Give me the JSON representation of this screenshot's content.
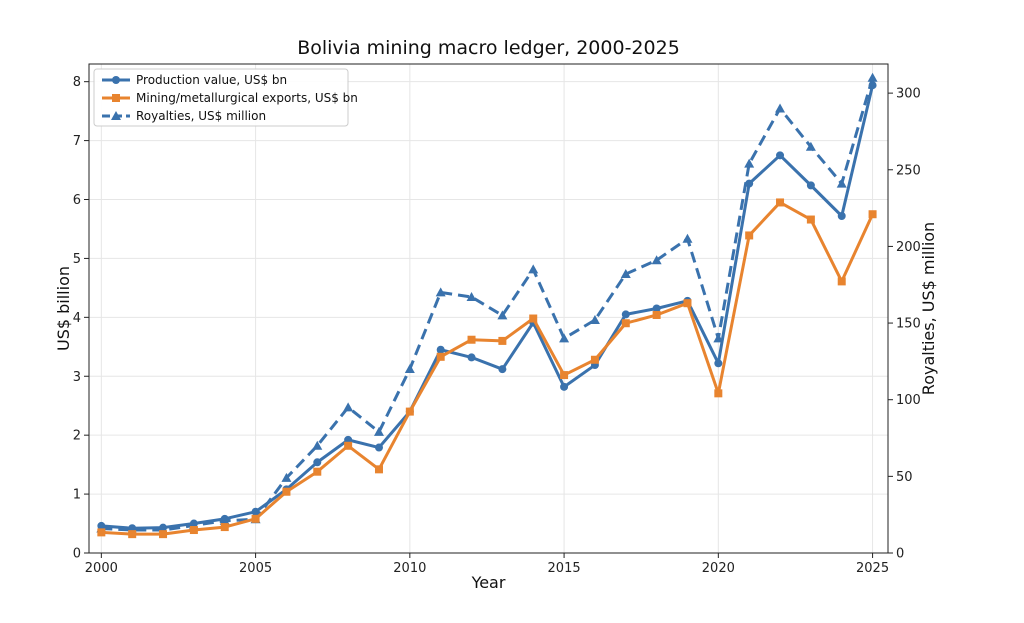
{
  "chart_data": {
    "type": "line",
    "title": "Bolivia mining macro ledger, 2000-2025",
    "xlabel": "Year",
    "ylabel": "US$ billion",
    "y2label": "Royalties, US$ million",
    "xlim": [
      1999.6,
      2025.5
    ],
    "ylim": [
      0,
      8.3
    ],
    "y2lim": [
      0,
      319
    ],
    "xticks": [
      2000,
      2005,
      2010,
      2015,
      2020,
      2025
    ],
    "yticks": [
      0,
      1,
      2,
      3,
      4,
      5,
      6,
      7,
      8
    ],
    "y2ticks": [
      0,
      50,
      100,
      150,
      200,
      250,
      300
    ],
    "grid": true,
    "legend_position": "upper-left",
    "x": [
      2000,
      2001,
      2002,
      2003,
      2004,
      2005,
      2006,
      2007,
      2008,
      2009,
      2010,
      2011,
      2012,
      2013,
      2014,
      2015,
      2016,
      2017,
      2018,
      2019,
      2020,
      2021,
      2022,
      2023,
      2024,
      2025
    ],
    "series": [
      {
        "name": "Production value, US$ bn",
        "axis": "left",
        "color": "#3a72ad",
        "marker": "circle",
        "linestyle": "solid",
        "values": [
          0.46,
          0.42,
          0.43,
          0.5,
          0.58,
          0.7,
          1.08,
          1.54,
          1.92,
          1.79,
          2.4,
          3.45,
          3.32,
          3.12,
          3.91,
          2.82,
          3.19,
          4.05,
          4.15,
          4.28,
          3.22,
          6.27,
          6.75,
          6.24,
          5.72,
          7.94
        ]
      },
      {
        "name": "Mining/metallurgical exports, US$ bn",
        "axis": "left",
        "color": "#e8842f",
        "marker": "square",
        "linestyle": "solid",
        "values": [
          0.35,
          0.32,
          0.32,
          0.39,
          0.44,
          0.58,
          1.04,
          1.38,
          1.82,
          1.42,
          2.4,
          3.33,
          3.62,
          3.6,
          3.98,
          3.02,
          3.28,
          3.9,
          4.04,
          4.24,
          2.71,
          5.39,
          5.95,
          5.66,
          4.61,
          5.75
        ]
      },
      {
        "name": "Royalties, US$ million",
        "axis": "right",
        "color": "#3a72ad",
        "marker": "triangle",
        "linestyle": "dashed",
        "values": [
          16,
          15,
          15,
          18,
          21,
          22,
          49,
          70,
          95,
          79,
          120,
          170,
          167,
          155,
          185,
          140,
          152,
          182,
          191,
          205,
          140,
          254,
          290,
          265,
          241,
          310
        ]
      }
    ]
  }
}
